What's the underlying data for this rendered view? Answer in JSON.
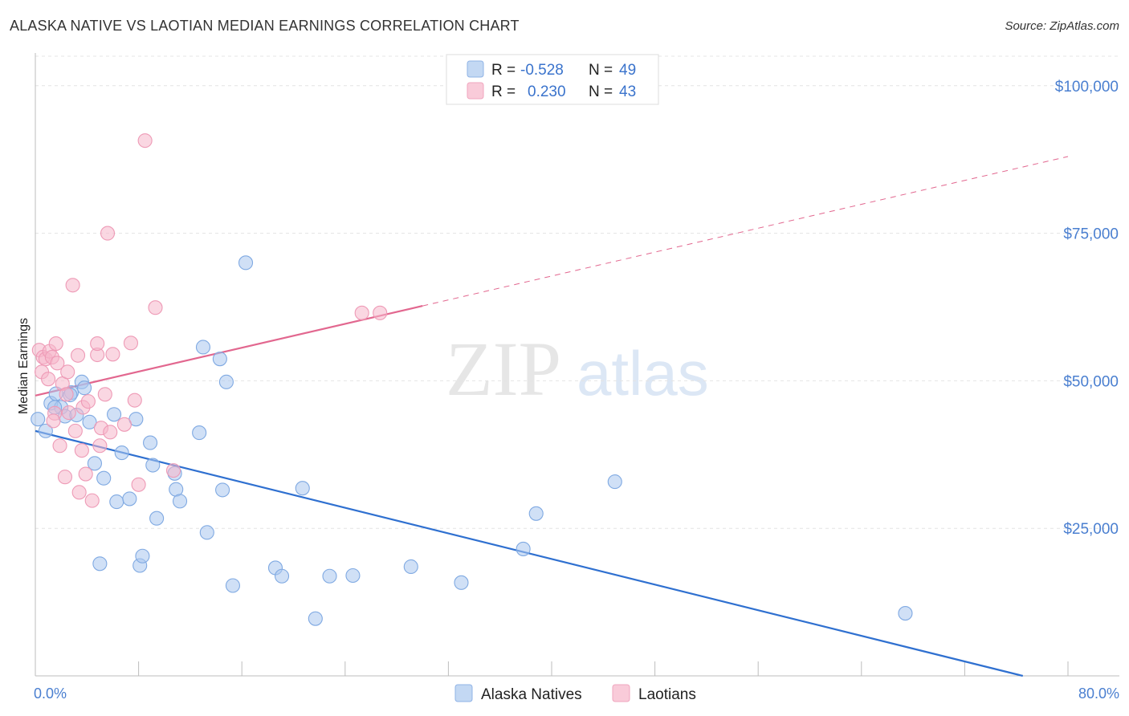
{
  "title": "ALASKA NATIVE VS LAOTIAN MEDIAN EARNINGS CORRELATION CHART",
  "source": "Source: ZipAtlas.com",
  "watermark": {
    "zip": "ZIP",
    "atlas": "atlas"
  },
  "legend": {
    "r_label": "R =",
    "n_label": "N =",
    "rows": [
      {
        "name": "Alaska Natives",
        "r": "-0.528",
        "n": "49"
      },
      {
        "name": "Laotians",
        "r": "0.230",
        "n": "43"
      }
    ]
  },
  "chart_data": {
    "type": "scatter",
    "title": "ALASKA NATIVE VS LAOTIAN MEDIAN EARNINGS CORRELATION CHART",
    "xlabel": "",
    "ylabel": "Median Earnings",
    "xlim": [
      0,
      80
    ],
    "ylim": [
      0,
      105000
    ],
    "x_tick_labels": [
      "0.0%",
      "80.0%"
    ],
    "y_ticks": [
      25000,
      50000,
      75000,
      100000
    ],
    "y_tick_labels": [
      "$25,000",
      "$50,000",
      "$75,000",
      "$100,000"
    ],
    "colors": {
      "alaska_fill": "#a9c7ee",
      "alaska_line": "#2f70d0",
      "laotian_fill": "#f6b7ca",
      "laotian_line": "#e2678f"
    },
    "series": [
      {
        "name": "Alaska Natives",
        "trend": {
          "x0": 0,
          "y0": 41500,
          "x1": 76.5,
          "y1": 0,
          "dashed_from": null
        },
        "points": [
          [
            0.2,
            43500
          ],
          [
            0.8,
            41500
          ],
          [
            1.2,
            46200
          ],
          [
            1.6,
            47800
          ],
          [
            2.0,
            45500
          ],
          [
            2.3,
            44000
          ],
          [
            2.8,
            48000
          ],
          [
            3.2,
            44200
          ],
          [
            3.6,
            49800
          ],
          [
            3.8,
            48800
          ],
          [
            4.2,
            43000
          ],
          [
            4.6,
            36000
          ],
          [
            5.0,
            19000
          ],
          [
            5.3,
            33500
          ],
          [
            6.1,
            44300
          ],
          [
            6.3,
            29500
          ],
          [
            6.7,
            37800
          ],
          [
            7.3,
            30000
          ],
          [
            7.8,
            43500
          ],
          [
            8.1,
            18700
          ],
          [
            8.3,
            20300
          ],
          [
            8.9,
            39500
          ],
          [
            9.1,
            35700
          ],
          [
            9.4,
            26700
          ],
          [
            10.8,
            34300
          ],
          [
            10.9,
            31600
          ],
          [
            11.2,
            29600
          ],
          [
            12.7,
            41200
          ],
          [
            13.0,
            55700
          ],
          [
            13.3,
            24300
          ],
          [
            14.3,
            53700
          ],
          [
            14.5,
            31500
          ],
          [
            14.8,
            49800
          ],
          [
            15.3,
            15300
          ],
          [
            16.3,
            70000
          ],
          [
            18.6,
            18300
          ],
          [
            19.1,
            16900
          ],
          [
            20.7,
            31800
          ],
          [
            21.7,
            9700
          ],
          [
            22.8,
            16900
          ],
          [
            24.6,
            17000
          ],
          [
            29.1,
            18500
          ],
          [
            33.0,
            15800
          ],
          [
            37.8,
            21500
          ],
          [
            38.8,
            27500
          ],
          [
            44.9,
            32900
          ],
          [
            67.4,
            10600
          ],
          [
            1.5,
            45500
          ],
          [
            2.7,
            47600
          ]
        ]
      },
      {
        "name": "Laotians",
        "trend": {
          "x0": 0,
          "y0": 47500,
          "x1": 80,
          "y1": 88000,
          "dashed_from": 30.0
        },
        "points": [
          [
            0.3,
            55200
          ],
          [
            0.5,
            51500
          ],
          [
            0.6,
            54000
          ],
          [
            0.8,
            53700
          ],
          [
            1.0,
            50300
          ],
          [
            1.1,
            55000
          ],
          [
            1.3,
            54000
          ],
          [
            1.5,
            44500
          ],
          [
            1.6,
            56300
          ],
          [
            1.7,
            53000
          ],
          [
            1.9,
            39000
          ],
          [
            2.1,
            49500
          ],
          [
            2.3,
            33700
          ],
          [
            2.4,
            47700
          ],
          [
            2.5,
            51500
          ],
          [
            2.9,
            66200
          ],
          [
            3.1,
            41500
          ],
          [
            3.3,
            54300
          ],
          [
            3.4,
            31100
          ],
          [
            3.7,
            45500
          ],
          [
            3.9,
            34200
          ],
          [
            4.1,
            46500
          ],
          [
            4.4,
            29700
          ],
          [
            4.8,
            54400
          ],
          [
            4.8,
            56300
          ],
          [
            5.0,
            39000
          ],
          [
            5.1,
            42000
          ],
          [
            5.4,
            47700
          ],
          [
            5.6,
            75000
          ],
          [
            5.8,
            41300
          ],
          [
            6.0,
            54500
          ],
          [
            6.9,
            42600
          ],
          [
            7.4,
            56400
          ],
          [
            7.7,
            46700
          ],
          [
            8.0,
            32400
          ],
          [
            8.5,
            90700
          ],
          [
            9.3,
            62400
          ],
          [
            10.7,
            34800
          ],
          [
            25.3,
            61500
          ],
          [
            26.7,
            61500
          ],
          [
            1.4,
            43200
          ],
          [
            2.6,
            44600
          ],
          [
            3.6,
            38200
          ]
        ]
      }
    ]
  }
}
